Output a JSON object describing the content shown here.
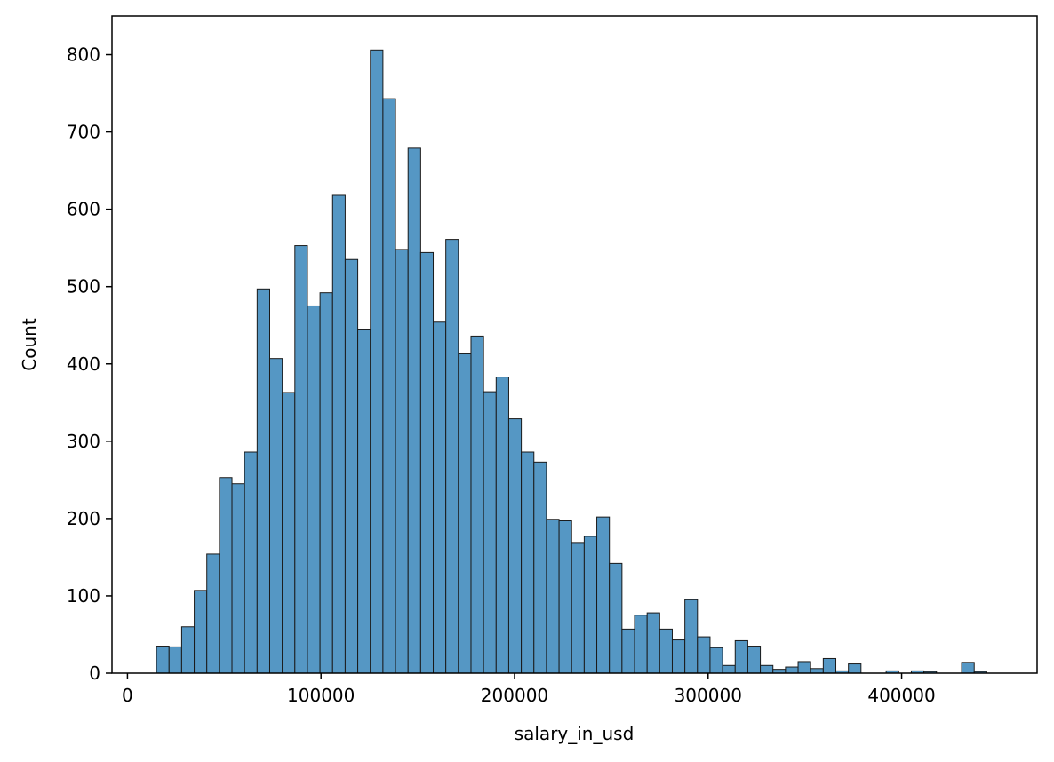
{
  "chart_data": {
    "type": "bar",
    "subtype": "histogram",
    "xlabel": "salary_in_usd",
    "ylabel": "Count",
    "xlim": [
      -8000,
      470000
    ],
    "ylim": [
      0,
      850
    ],
    "xticks": [
      0,
      100000,
      200000,
      300000,
      400000
    ],
    "xtick_labels": [
      "0",
      "100000",
      "200000",
      "300000",
      "400000"
    ],
    "yticks": [
      0,
      100,
      200,
      300,
      400,
      500,
      600,
      700,
      800
    ],
    "ytick_labels": [
      "0",
      "100",
      "200",
      "300",
      "400",
      "500",
      "600",
      "700",
      "800"
    ],
    "bar_color": "#5597c4",
    "edge_color": "#1a1a1a",
    "bin_start": 15000,
    "bin_width": 6500,
    "counts": [
      35,
      34,
      60,
      107,
      154,
      253,
      245,
      286,
      497,
      407,
      363,
      553,
      475,
      492,
      618,
      535,
      444,
      806,
      743,
      548,
      679,
      544,
      454,
      561,
      413,
      436,
      364,
      383,
      329,
      286,
      273,
      199,
      197,
      169,
      177,
      202,
      142,
      57,
      75,
      78,
      57,
      43,
      95,
      47,
      33,
      10,
      42,
      35,
      10,
      5,
      8,
      15,
      6,
      19,
      3,
      12,
      0,
      0,
      3,
      0,
      3,
      2,
      0,
      0,
      14,
      2
    ],
    "grid": false
  }
}
